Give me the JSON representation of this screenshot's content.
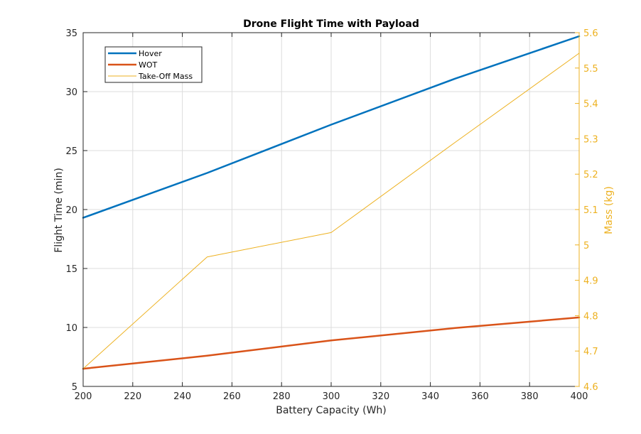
{
  "chart_data": {
    "type": "line",
    "title": "Drone Flight Time with Payload",
    "xlabel": "Battery Capacity (Wh)",
    "ylabel": "Flight Time (min)",
    "ylabel_right": "Mass (kg)",
    "xlim": [
      200,
      400
    ],
    "ylim": [
      5,
      35
    ],
    "ylim_right": [
      4.6,
      5.6
    ],
    "x_ticks": [
      "200",
      "220",
      "240",
      "260",
      "280",
      "300",
      "320",
      "340",
      "360",
      "380",
      "400"
    ],
    "y_ticks": [
      "5",
      "10",
      "15",
      "20",
      "25",
      "30",
      "35"
    ],
    "y_ticks_right": [
      "4.6",
      "4.7",
      "4.8",
      "4.9",
      "5",
      "5.1",
      "5.2",
      "5.3",
      "5.4",
      "5.5",
      "5.6"
    ],
    "grid": true,
    "legend_position": "top-left",
    "series": [
      {
        "name": "Hover",
        "axis": "left",
        "color": "#0072BD",
        "x": [
          200,
          250,
          300,
          350,
          400
        ],
        "values": [
          19.3,
          23.1,
          27.2,
          31.1,
          34.7
        ]
      },
      {
        "name": "WOT",
        "axis": "left",
        "color": "#D95319",
        "x": [
          200,
          250,
          300,
          350,
          400
        ],
        "values": [
          6.5,
          7.6,
          8.9,
          9.95,
          10.85
        ]
      },
      {
        "name": "Take-Off Mass",
        "axis": "right",
        "color": "#EDB120",
        "x": [
          200,
          250,
          300,
          350,
          400
        ],
        "values": [
          4.65,
          4.966,
          5.035,
          5.29,
          5.542
        ]
      }
    ]
  },
  "colors": {
    "axis": "#262626",
    "grid": "#dcdcdc",
    "right_axis": "#EDB120"
  }
}
